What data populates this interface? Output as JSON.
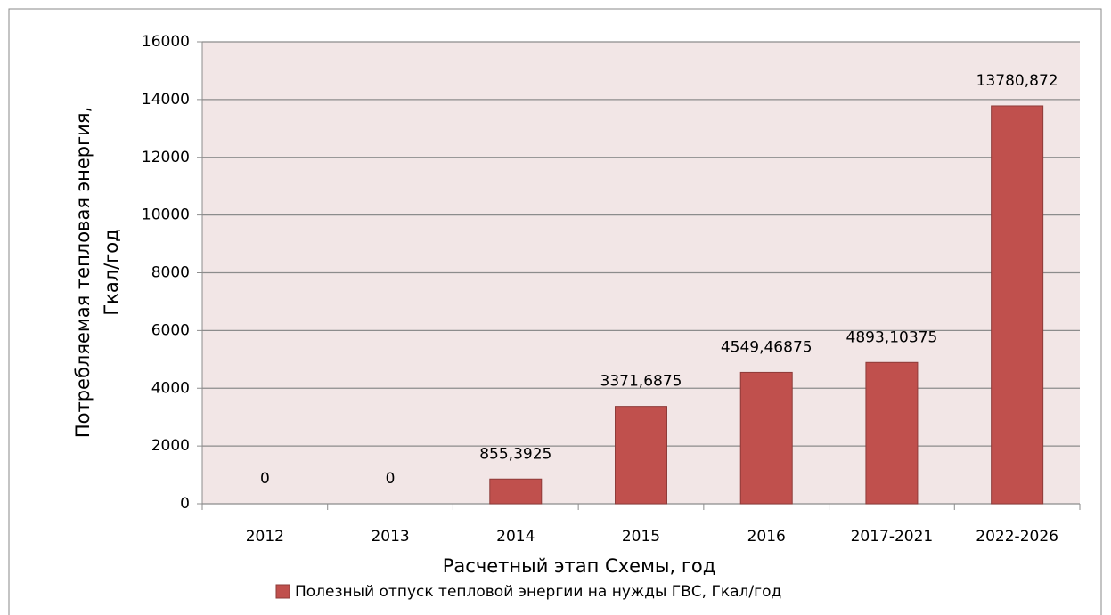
{
  "chart_data": {
    "type": "bar",
    "categories": [
      "2012",
      "2013",
      "2014",
      "2015",
      "2016",
      "2017-2021",
      "2022-2026"
    ],
    "series": [
      {
        "name": "Полезный отпуск тепловой энергии на нужды ГВС, Гкал/год",
        "color": "#c0504d",
        "values": [
          0,
          0,
          855.3925,
          3371.6875,
          4549.46875,
          4893.10375,
          13780.872
        ],
        "value_labels": [
          "0",
          "0",
          "855,3925",
          "3371,6875",
          "4549,46875",
          "4893,10375",
          "13780,872"
        ]
      }
    ],
    "x_label": "Расчетный этап Схемы, год",
    "y_label": [
      "Потребляемая тепловая энергия,",
      "Гкал/год"
    ],
    "ylim": [
      0,
      16000
    ],
    "yticks": [
      0,
      2000,
      4000,
      6000,
      8000,
      10000,
      12000,
      14000,
      16000
    ],
    "grid": true,
    "legend": "bottom"
  }
}
